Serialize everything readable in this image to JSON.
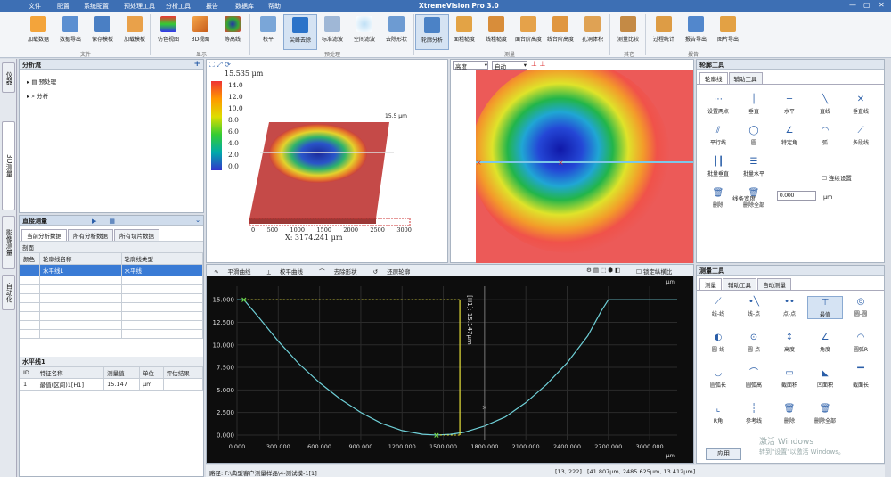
{
  "window": {
    "title": "XtremeVision Pro 3.0",
    "menu": [
      "文件",
      "配置",
      "系统配置",
      "预处理工具",
      "分析工具",
      "报告",
      "数据库",
      "帮助"
    ]
  },
  "ribbon": {
    "buttons": [
      "加载数据",
      "数据导出",
      "保存模板",
      "加载模板",
      "仿色视图",
      "3D视图",
      "等高线",
      "校平",
      "尖峰去除",
      "标准滤波",
      "空间滤波",
      "去除形状",
      "轮廓分析",
      "面粗糙度",
      "线粗糙度",
      "面台阶高度",
      "线台阶高度",
      "孔洞体积",
      "测量比较",
      "过程统计",
      "报告导出",
      "图片导出"
    ],
    "groups": [
      "文件",
      "显示",
      "预处理",
      "测量",
      "其它",
      "报告"
    ]
  },
  "left_tabs": [
    "仪器",
    "3D测量",
    "影像测量",
    "自动化"
  ],
  "analysis_flow": {
    "title": "分析流",
    "items": [
      "预处理",
      "分析"
    ]
  },
  "direct_measure": {
    "title": "直接测量",
    "tabs": [
      "当前分析数据",
      "所有分析数据",
      "所有切片数据"
    ],
    "section": "剖面",
    "headers": [
      "颜色",
      "轮廓线名称",
      "轮廓线类型"
    ],
    "rows": [
      {
        "name": "水平线1",
        "type": "水平线"
      }
    ]
  },
  "result": {
    "title": "水平线1",
    "headers": [
      "ID",
      "特征名称",
      "测量值",
      "单位",
      "评估结果"
    ],
    "rows": [
      {
        "id": "1",
        "name": "最值(区间)1[H1]",
        "value": "15.147",
        "unit": "μm",
        "eval": ""
      }
    ]
  },
  "view3d": {
    "scale_max": "15.535 μm",
    "scale_ticks": [
      "14.0",
      "12.0",
      "10.0",
      "8.0",
      "6.0",
      "4.0",
      "2.0",
      "0.0"
    ],
    "x_label": "X: 3174.241 μm",
    "x_ticks": [
      "0",
      "500",
      "1000",
      "1500",
      "2000",
      "2500",
      "3000"
    ],
    "corner_label": "15.5 μm"
  },
  "view2d": {
    "dropdown1": "高度",
    "dropdown2": "自动"
  },
  "profile": {
    "toolbar": [
      "平滑曲线",
      "校平曲线",
      "去除形状",
      "还原轮廓"
    ],
    "checkbox": "锁定纵横比",
    "unit_x": "μm",
    "unit_y": "μm",
    "annotation": "[H1]: 15.147μm",
    "y_ticks": [
      "0.000",
      "2.500",
      "5.000",
      "7.500",
      "10.000",
      "12.500",
      "15.000"
    ],
    "x_ticks": [
      "0.000",
      "300.000",
      "600.000",
      "900.000",
      "1200.000",
      "1500.000",
      "1800.000",
      "2100.000",
      "2400.000",
      "2700.000",
      "3000.000"
    ]
  },
  "contour_tools": {
    "title": "轮廓工具",
    "tabs": [
      "轮廓线",
      "辅助工具"
    ],
    "items": [
      "设置两点",
      "垂直",
      "水平",
      "直线",
      "垂直线",
      "平行线",
      "圆",
      "特定角",
      "弧",
      "多段线",
      "批量垂直",
      "批量水平",
      "删除",
      "删除全部"
    ],
    "checkbox": "连续设置",
    "width_label": "线条宽度",
    "width_value": "0.000",
    "width_unit": "μm"
  },
  "measure_tools": {
    "title": "测量工具",
    "tabs": [
      "测量",
      "辅助工具",
      "自动测量"
    ],
    "items": [
      "线-线",
      "线-点",
      "点-点",
      "最值",
      "圆-圆",
      "圆-线",
      "圆-点",
      "高度",
      "角度",
      "圆弧R",
      "圆弧长",
      "圆弧高",
      "截面积",
      "凹面积",
      "截面长",
      "R角",
      "参考线",
      "删除",
      "删除全部"
    ],
    "apply": "应用"
  },
  "statusbar": {
    "path": "路径: F:\\典型客户测量样品\\4-测试模-1[1]",
    "coords": "[13, 222]",
    "values": "[41.807μm, 2485.625μm, 13.412μm]"
  },
  "watermark": {
    "line1": "激活 Windows",
    "line2": "转到\"设置\"以激活 Windows。"
  },
  "chart_data": {
    "type": "line",
    "x": [
      0,
      50,
      150,
      300,
      450,
      600,
      750,
      900,
      1050,
      1200,
      1350,
      1450,
      1550,
      1650,
      1800,
      1950,
      2100,
      2250,
      2400,
      2550,
      2650,
      2700,
      3000,
      3200
    ],
    "y": [
      15.0,
      15.0,
      13.2,
      10.4,
      7.9,
      5.8,
      4.0,
      2.5,
      1.3,
      0.5,
      0.08,
      0,
      0.08,
      0.3,
      1.0,
      2.0,
      3.6,
      5.6,
      8.0,
      11.0,
      13.8,
      15.0,
      15.0,
      15.0
    ],
    "xlabel": "μm",
    "ylabel": "μm",
    "xlim": [
      0,
      3200
    ],
    "ylim": [
      -0.5,
      16.5
    ],
    "markers": [
      {
        "x": 50,
        "y": 15.0
      },
      {
        "x": 1450,
        "y": 0
      }
    ]
  }
}
